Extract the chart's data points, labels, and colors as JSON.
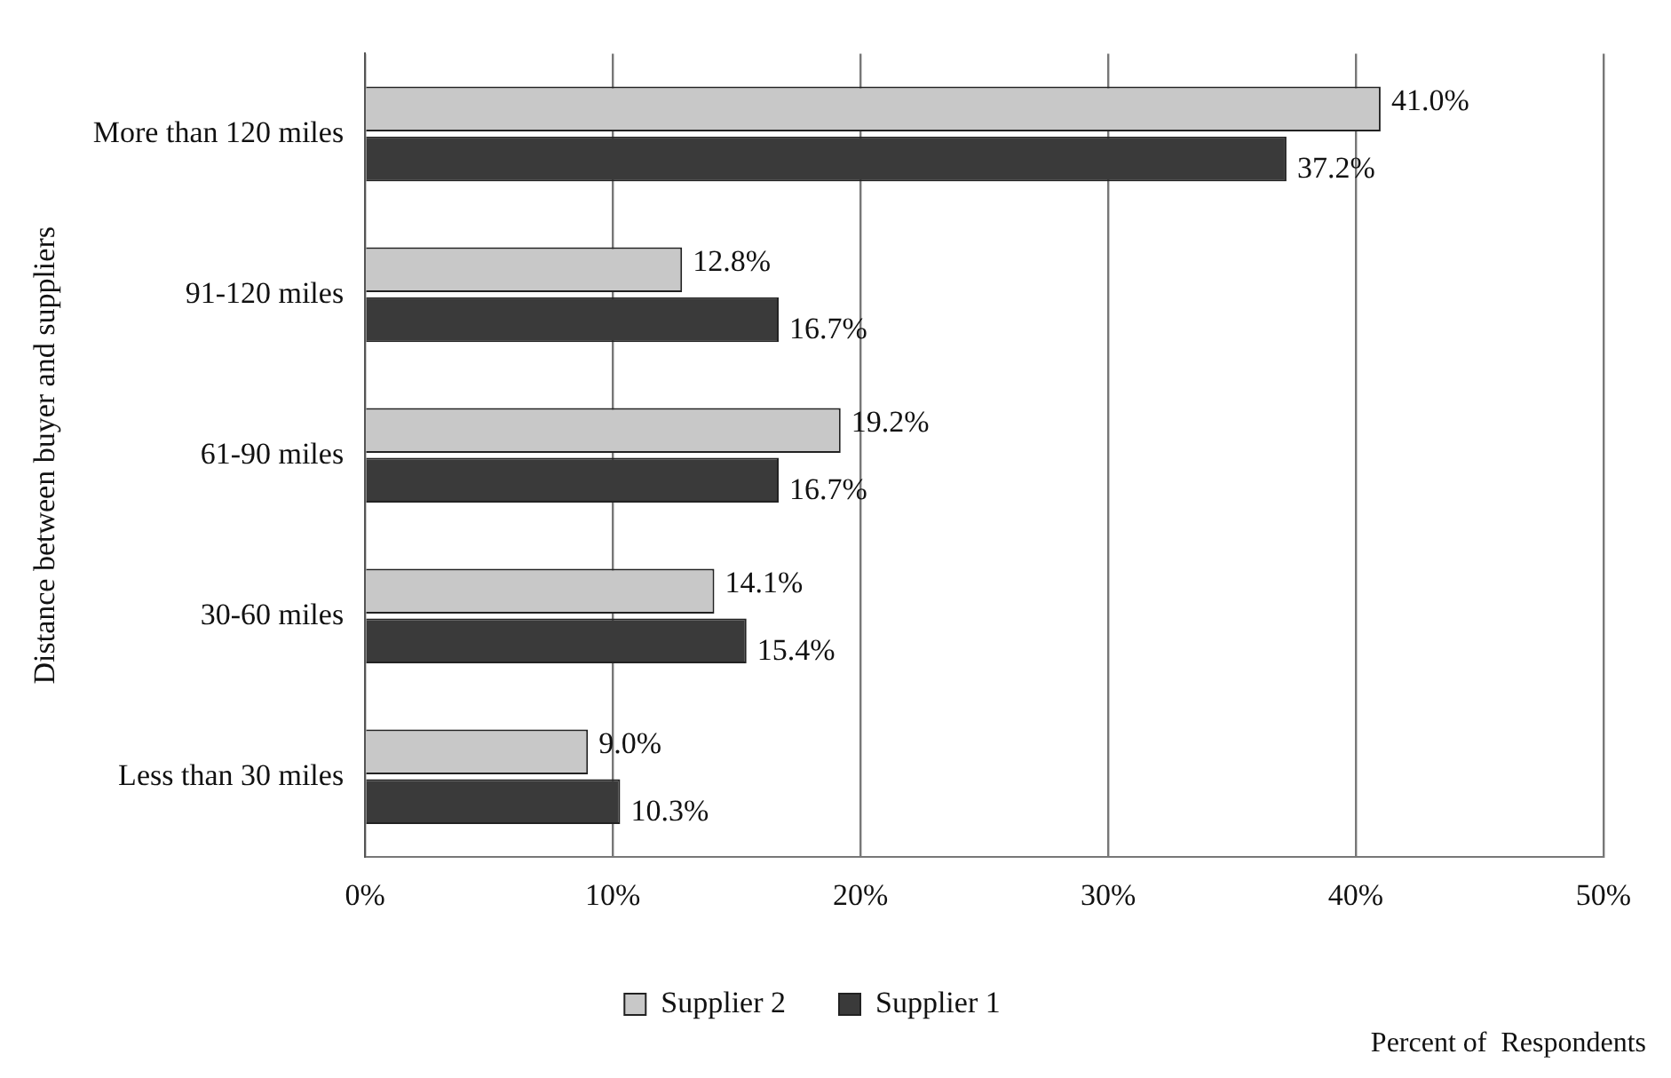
{
  "chart_data": {
    "type": "bar",
    "orientation": "horizontal",
    "ylabel": "Distance between buyer and suppliers",
    "xlabel": "Percent of  Respondents",
    "categories": [
      "More than 120 miles",
      "91-120 miles",
      "61-90 miles",
      "30-60 miles",
      "Less than 30 miles"
    ],
    "series": [
      {
        "name": "Supplier 2",
        "color": "#c8c8c8",
        "values": [
          41.0,
          12.8,
          19.2,
          14.1,
          9.0
        ],
        "value_labels": [
          "41.0%",
          "12.8%",
          "19.2%",
          "14.1%",
          "9.0%"
        ]
      },
      {
        "name": "Supplier 1",
        "color": "#3a3a3a",
        "values": [
          37.2,
          16.7,
          16.7,
          15.4,
          10.3
        ],
        "value_labels": [
          "37.2%",
          "16.7%",
          "16.7%",
          "15.4%",
          "10.3%"
        ]
      }
    ],
    "xlim": [
      0,
      50
    ],
    "xticks": [
      {
        "value": 0,
        "label": "0%"
      },
      {
        "value": 10,
        "label": "10%"
      },
      {
        "value": 20,
        "label": "20%"
      },
      {
        "value": 30,
        "label": "30%"
      },
      {
        "value": 40,
        "label": "40%"
      },
      {
        "value": 50,
        "label": "50%"
      }
    ],
    "grid": "x",
    "legend": "bottom"
  }
}
